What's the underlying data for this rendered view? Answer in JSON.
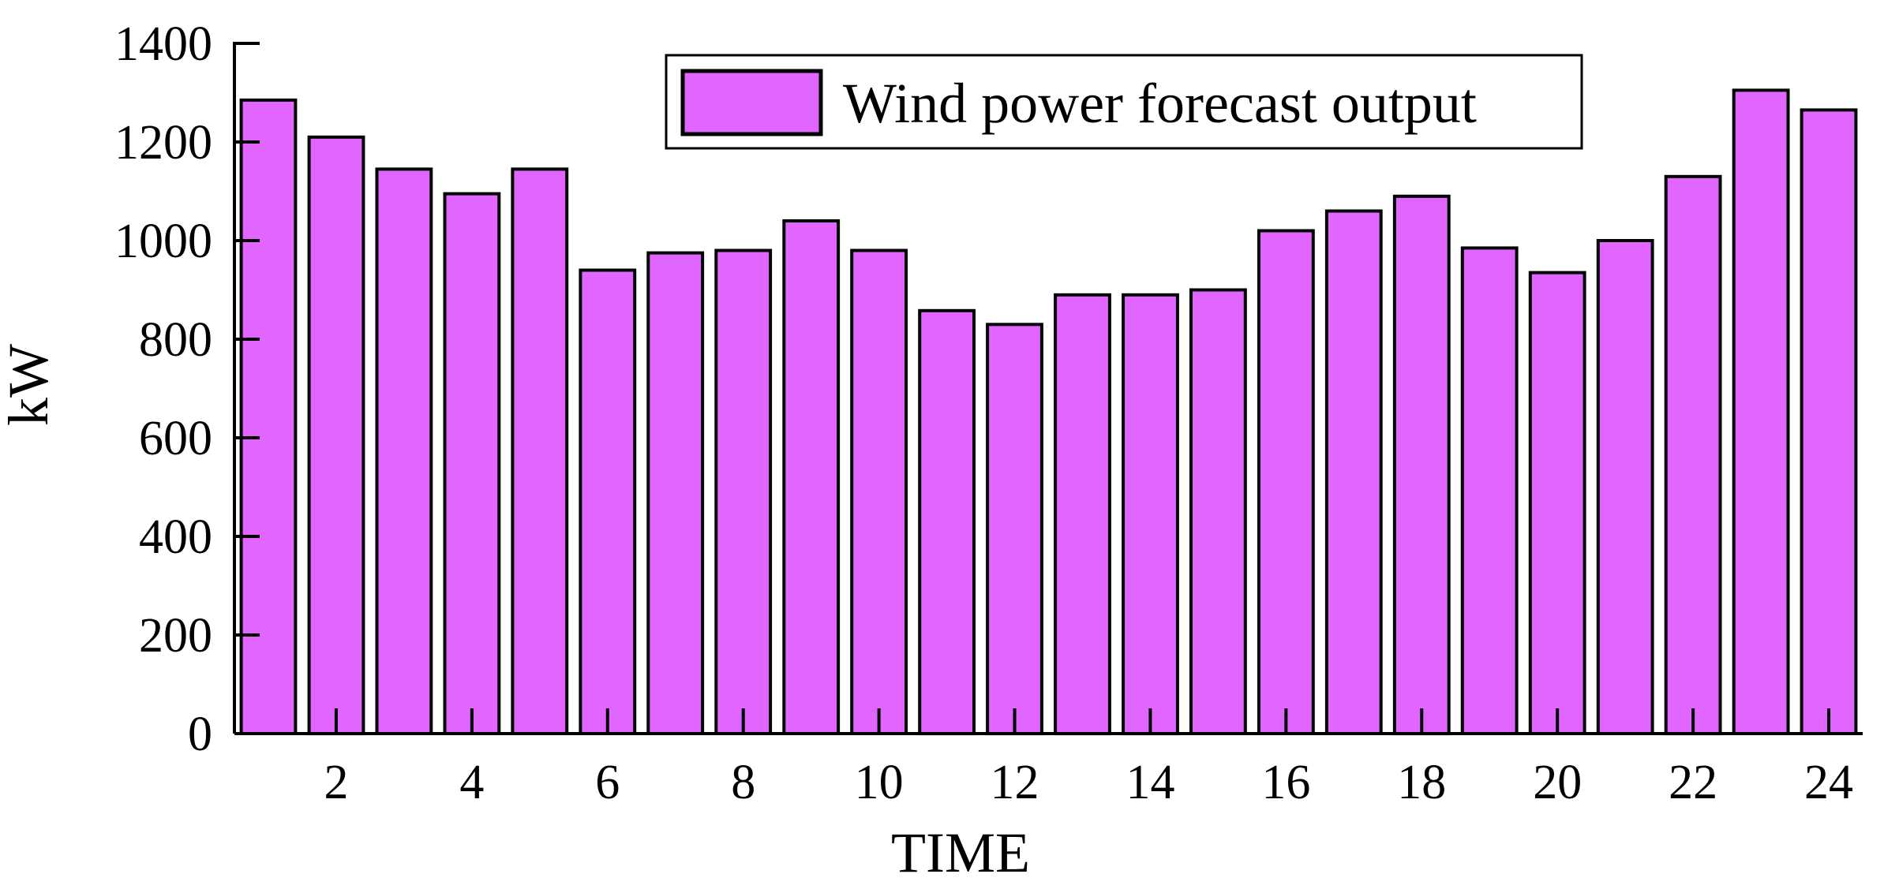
{
  "chart_data": {
    "type": "bar",
    "categories": [
      "1",
      "2",
      "3",
      "4",
      "5",
      "6",
      "7",
      "8",
      "9",
      "10",
      "11",
      "12",
      "13",
      "14",
      "15",
      "16",
      "17",
      "18",
      "19",
      "20",
      "21",
      "22",
      "23",
      "24"
    ],
    "x_tick_labels": [
      "2",
      "4",
      "6",
      "8",
      "10",
      "12",
      "14",
      "16",
      "18",
      "20",
      "22",
      "24"
    ],
    "y_tick_labels": [
      "0",
      "200",
      "400",
      "600",
      "800",
      "1000",
      "1200",
      "1400"
    ],
    "series": [
      {
        "name": "Wind power forecast output",
        "values": [
          1285,
          1210,
          1145,
          1095,
          1145,
          940,
          975,
          980,
          1040,
          980,
          858,
          830,
          890,
          890,
          900,
          1020,
          1060,
          1090,
          985,
          935,
          1000,
          1130,
          1305,
          1265
        ],
        "color": "#e066ff"
      }
    ],
    "xlabel": "TIME",
    "ylabel": "kW",
    "ylim": [
      0,
      1400
    ],
    "grid": false,
    "legend_position": "top-right"
  }
}
